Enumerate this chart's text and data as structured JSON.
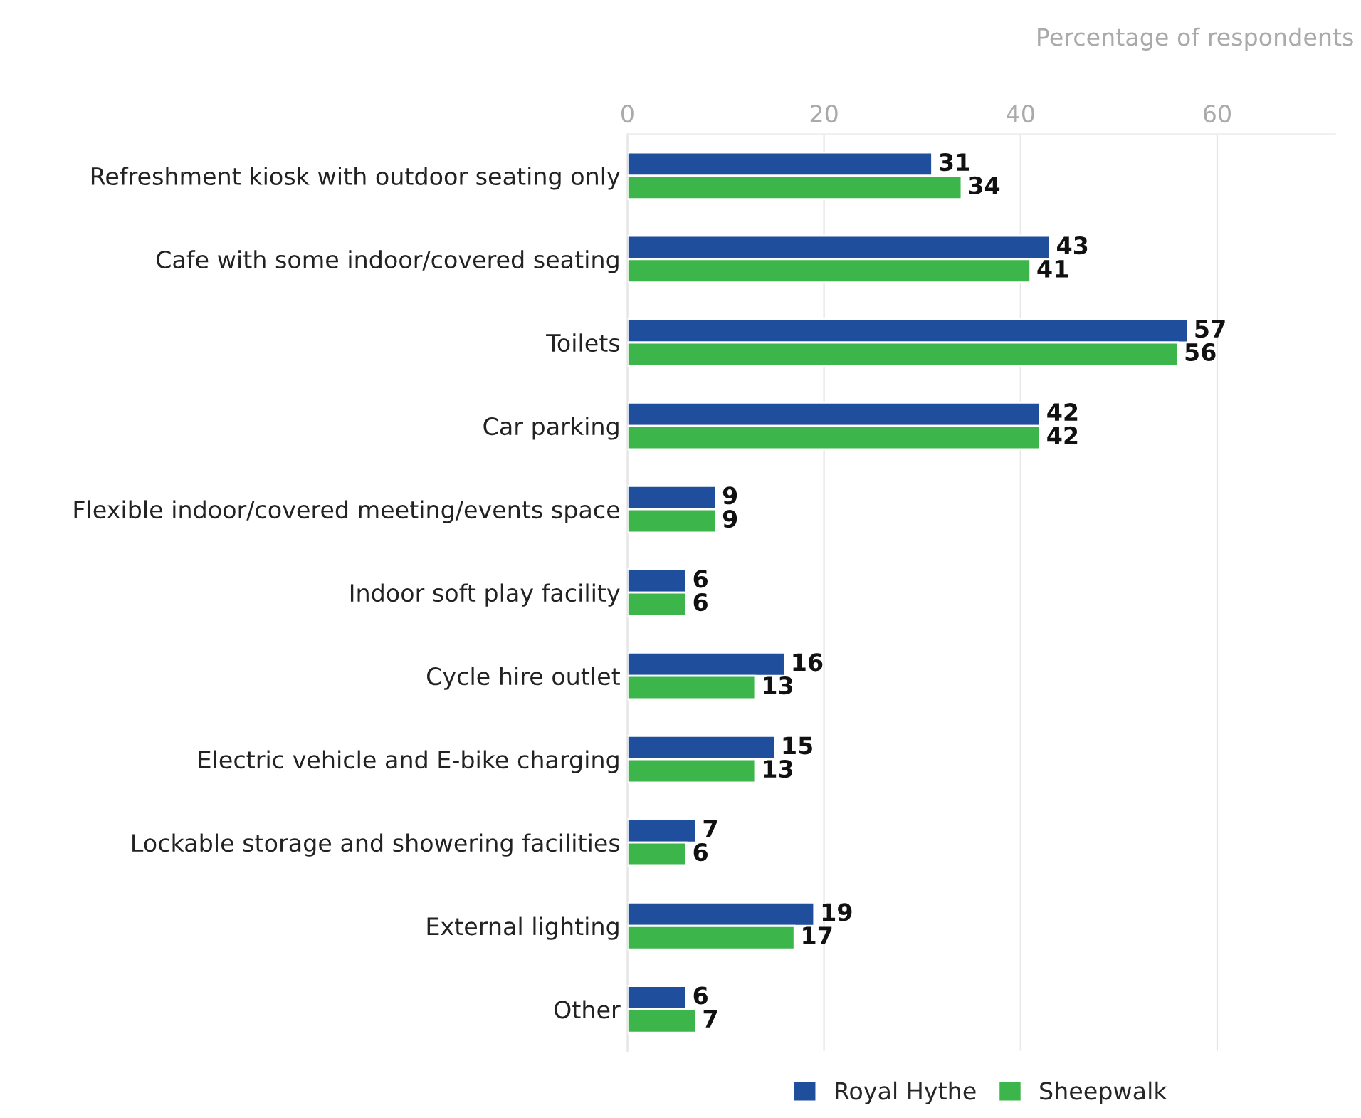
{
  "chart_data": {
    "type": "bar",
    "orientation": "horizontal",
    "xlabel": "Percentage of respondents",
    "categories": [
      "Refreshment kiosk with outdoor seating only",
      "Cafe with some indoor/covered seating",
      "Toilets",
      "Car parking",
      "Flexible indoor/covered meeting/events space",
      "Indoor soft play facility",
      "Cycle hire outlet",
      "Electric vehicle and E-bike charging",
      "Lockable storage and showering facilities",
      "External lighting",
      "Other"
    ],
    "series": [
      {
        "name": "Royal Hythe",
        "color": "#1f4e9c",
        "values": [
          31,
          43,
          57,
          42,
          9,
          6,
          16,
          15,
          7,
          19,
          6
        ]
      },
      {
        "name": "Sheepwalk",
        "color": "#3cb54a",
        "values": [
          34,
          41,
          56,
          42,
          9,
          6,
          13,
          13,
          6,
          17,
          7
        ]
      }
    ],
    "xlim": [
      0,
      72
    ],
    "xticks": [
      0,
      20,
      40,
      60
    ],
    "grid": "x",
    "legend": "bottom",
    "data_labels": true
  }
}
